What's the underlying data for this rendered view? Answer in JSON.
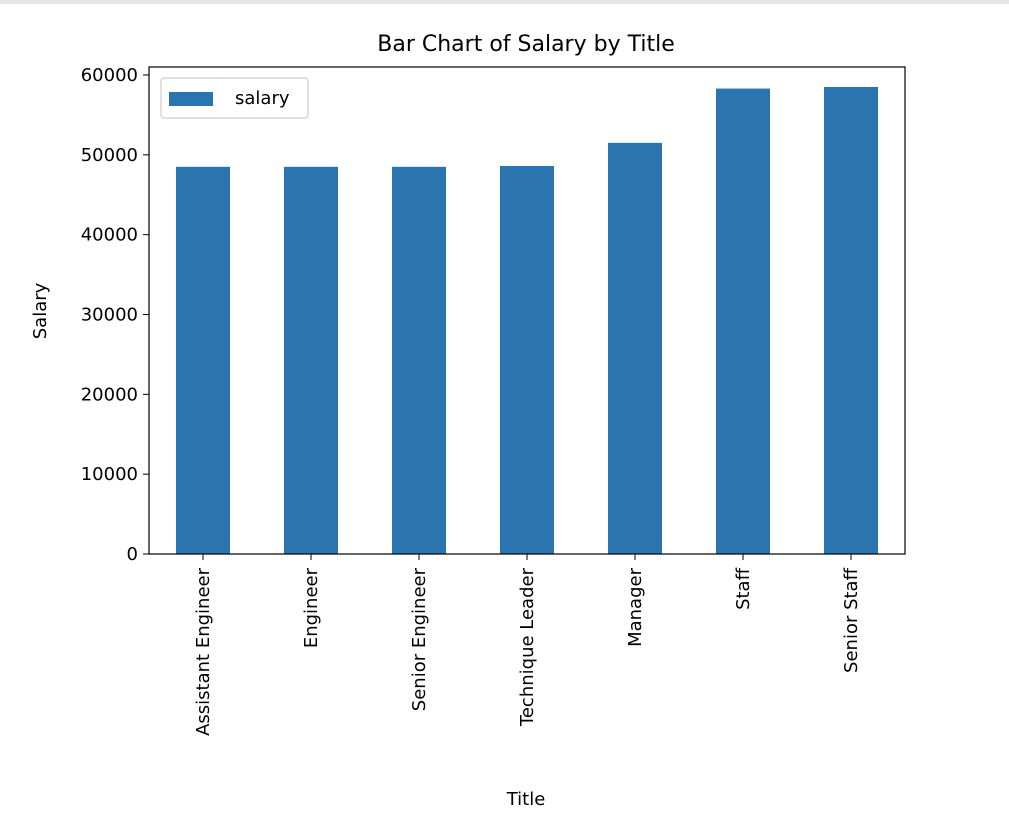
{
  "chart_data": {
    "type": "bar",
    "title": "Bar Chart of Salary by Title",
    "xlabel": "Title",
    "ylabel": "Salary",
    "categories": [
      "Assistant Engineer",
      "Engineer",
      "Senior Engineer",
      "Technique Leader",
      "Manager",
      "Staff",
      "Senior Staff"
    ],
    "series": [
      {
        "name": "salary",
        "values": [
          48500,
          48500,
          48500,
          48600,
          51500,
          58300,
          58500
        ]
      }
    ],
    "ylim": [
      0,
      61000
    ],
    "yticks": [
      0,
      10000,
      20000,
      30000,
      40000,
      50000,
      60000
    ],
    "ytick_labels": [
      "0",
      "10000",
      "20000",
      "30000",
      "40000",
      "50000",
      "60000"
    ],
    "grid": false,
    "legend_position": "top-left",
    "colors": {
      "bar": "#2a75b0",
      "axis": "#000000"
    }
  }
}
